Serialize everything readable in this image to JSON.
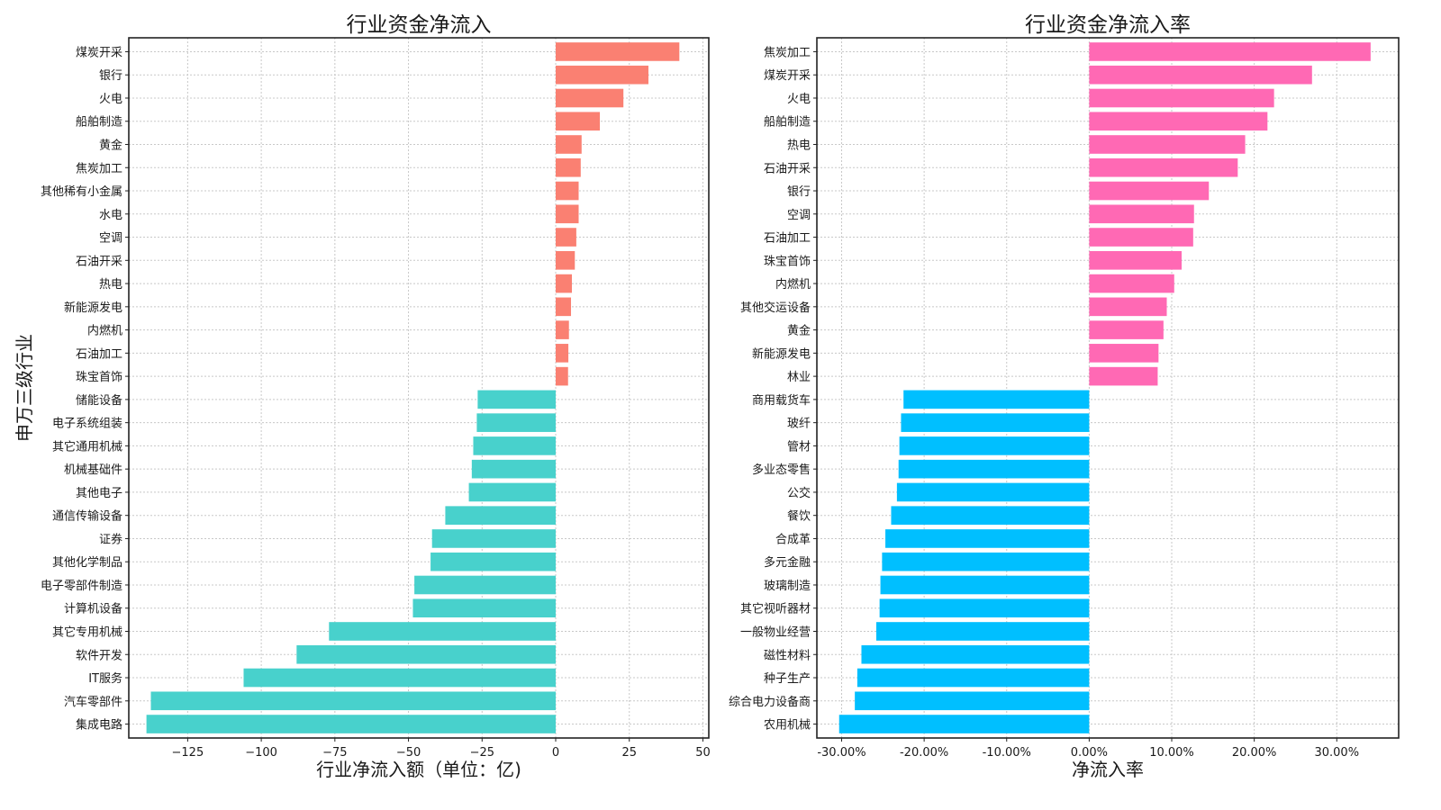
{
  "chart_data": [
    {
      "type": "bar",
      "orientation": "horizontal",
      "title": "行业资金净流入",
      "xlabel": "行业净流入额（单位：亿)",
      "ylabel": "申万三级行业",
      "xlim": [
        -145,
        52
      ],
      "xticks": [
        -125,
        -100,
        -75,
        -50,
        -25,
        0,
        25,
        50
      ],
      "xtick_labels": [
        "−125",
        "−100",
        "−75",
        "−50",
        "−25",
        "0",
        "25",
        "50"
      ],
      "grid": true,
      "positive_color": "#FA8072",
      "negative_color": "#48D1CC",
      "categories": [
        "煤炭开采",
        "银行",
        "火电",
        "船舶制造",
        "黄金",
        "焦炭加工",
        "其他稀有小金属",
        "水电",
        "空调",
        "石油开采",
        "热电",
        "新能源发电",
        "内燃机",
        "石油加工",
        "珠宝首饰",
        "储能设备",
        "电子系统组装",
        "其它通用机械",
        "机械基础件",
        "其他电子",
        "通信传输设备",
        "证券",
        "其他化学制品",
        "电子零部件制造",
        "计算机设备",
        "其它专用机械",
        "软件开发",
        "IT服务",
        "汽车零部件",
        "集成电路"
      ],
      "values": [
        42.0,
        31.5,
        23.0,
        15.0,
        8.8,
        8.5,
        7.8,
        7.8,
        7.0,
        6.5,
        5.5,
        5.2,
        4.5,
        4.3,
        4.2,
        -26.5,
        -26.8,
        -28.0,
        -28.5,
        -29.5,
        -37.5,
        -42.0,
        -42.5,
        -48.0,
        -48.5,
        -77.0,
        -88.0,
        -106.0,
        -137.5,
        -139.0
      ]
    },
    {
      "type": "bar",
      "orientation": "horizontal",
      "title": "行业资金净流入率",
      "xlabel": "净流入率",
      "ylabel": "",
      "xlim": [
        -0.33,
        0.375
      ],
      "xticks": [
        -0.3,
        -0.2,
        -0.1,
        0.0,
        0.1,
        0.2,
        0.3
      ],
      "xtick_labels": [
        "-30.00%",
        "-20.00%",
        "-10.00%",
        "0.00%",
        "10.00%",
        "20.00%",
        "30.00%"
      ],
      "grid": true,
      "positive_color": "#FF69B4",
      "negative_color": "#00BFFF",
      "categories": [
        "焦炭加工",
        "煤炭开采",
        "火电",
        "船舶制造",
        "热电",
        "石油开采",
        "银行",
        "空调",
        "石油加工",
        "珠宝首饰",
        "内燃机",
        "其他交运设备",
        "黄金",
        "新能源发电",
        "林业",
        "商用载货车",
        "玻纤",
        "管材",
        "多业态零售",
        "公交",
        "餐饮",
        "合成革",
        "多元金融",
        "玻璃制造",
        "其它视听器材",
        "一般物业经营",
        "磁性材料",
        "种子生产",
        "综合电力设备商",
        "农用机械"
      ],
      "values": [
        0.341,
        0.27,
        0.224,
        0.216,
        0.189,
        0.18,
        0.145,
        0.127,
        0.126,
        0.112,
        0.103,
        0.094,
        0.09,
        0.084,
        0.083,
        -0.225,
        -0.228,
        -0.23,
        -0.231,
        -0.233,
        -0.24,
        -0.247,
        -0.251,
        -0.253,
        -0.254,
        -0.258,
        -0.276,
        -0.281,
        -0.284,
        -0.303
      ]
    }
  ]
}
